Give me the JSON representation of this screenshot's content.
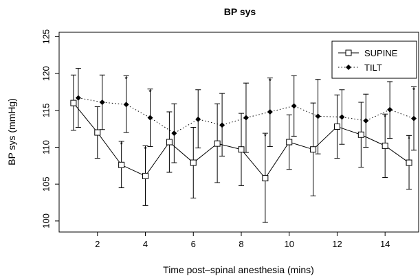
{
  "chart_data": {
    "type": "line",
    "title": "BP sys",
    "xlabel": "Time post–spinal anesthesia (mins)",
    "ylabel": "BP sys (mmHg)",
    "xlim": [
      0.4,
      15.4
    ],
    "ylim": [
      98.5,
      125.6
    ],
    "x_ticks": [
      "2",
      "4",
      "6",
      "8",
      "10",
      "12",
      "14"
    ],
    "y_ticks": [
      "100",
      "105",
      "110",
      "115",
      "120",
      "125"
    ],
    "legend_position": "top-right",
    "grid": false,
    "series": [
      {
        "name": "SUPINE",
        "line_style": "solid",
        "marker": "open-square",
        "color": "#000000",
        "points": [
          {
            "x": 1,
            "y": 116.0,
            "lo": 112.3,
            "hi": 119.8,
            "star": false
          },
          {
            "x": 2,
            "y": 112.0,
            "lo": 108.5,
            "hi": 115.5,
            "star": false
          },
          {
            "x": 3,
            "y": 107.6,
            "lo": 104.5,
            "hi": 110.8,
            "star": true
          },
          {
            "x": 4,
            "y": 106.1,
            "lo": 102.1,
            "hi": 110.2,
            "star": true
          },
          {
            "x": 5,
            "y": 110.7,
            "lo": 106.6,
            "hi": 114.8,
            "star": false
          },
          {
            "x": 6,
            "y": 107.9,
            "lo": 103.1,
            "hi": 112.7,
            "star": false
          },
          {
            "x": 7,
            "y": 110.5,
            "lo": 105.2,
            "hi": 115.9,
            "star": false
          },
          {
            "x": 8,
            "y": 109.7,
            "lo": 104.8,
            "hi": 114.6,
            "star": false
          },
          {
            "x": 9,
            "y": 105.8,
            "lo": 99.8,
            "hi": 111.9,
            "star": true
          },
          {
            "x": 10,
            "y": 110.7,
            "lo": 107.0,
            "hi": 114.4,
            "star": false
          },
          {
            "x": 11,
            "y": 109.7,
            "lo": 103.4,
            "hi": 116.0,
            "star": false
          },
          {
            "x": 12,
            "y": 112.8,
            "lo": 108.5,
            "hi": 117.1,
            "star": false
          },
          {
            "x": 13,
            "y": 111.7,
            "lo": 107.3,
            "hi": 116.1,
            "star": false
          },
          {
            "x": 14,
            "y": 110.2,
            "lo": 105.9,
            "hi": 114.5,
            "star": true
          },
          {
            "x": 15,
            "y": 107.9,
            "lo": 104.3,
            "hi": 111.6,
            "star": true
          }
        ]
      },
      {
        "name": "TILT",
        "line_style": "dotted",
        "marker": "filled-diamond",
        "color": "#000000",
        "points": [
          {
            "x": 1.2,
            "y": 116.7,
            "lo": 112.7,
            "hi": 120.7,
            "star": false
          },
          {
            "x": 2.2,
            "y": 116.1,
            "lo": 112.4,
            "hi": 119.8,
            "star": false
          },
          {
            "x": 3.2,
            "y": 115.8,
            "lo": 112.0,
            "hi": 119.7,
            "star": true
          },
          {
            "x": 4.2,
            "y": 114.0,
            "lo": 110.1,
            "hi": 117.9,
            "star": true
          },
          {
            "x": 5.2,
            "y": 111.9,
            "lo": 107.9,
            "hi": 115.9,
            "star": false
          },
          {
            "x": 6.2,
            "y": 113.8,
            "lo": 109.9,
            "hi": 117.8,
            "star": false
          },
          {
            "x": 7.2,
            "y": 113.0,
            "lo": 108.8,
            "hi": 117.3,
            "star": false
          },
          {
            "x": 8.2,
            "y": 114.0,
            "lo": 109.3,
            "hi": 118.7,
            "star": false
          },
          {
            "x": 9.2,
            "y": 114.8,
            "lo": 110.1,
            "hi": 119.4,
            "star": true
          },
          {
            "x": 10.2,
            "y": 115.6,
            "lo": 111.5,
            "hi": 119.7,
            "star": false
          },
          {
            "x": 11.2,
            "y": 114.2,
            "lo": 109.1,
            "hi": 119.2,
            "star": false
          },
          {
            "x": 12.2,
            "y": 114.1,
            "lo": 110.4,
            "hi": 117.8,
            "star": false
          },
          {
            "x": 13.2,
            "y": 113.6,
            "lo": 110.0,
            "hi": 117.2,
            "star": false
          },
          {
            "x": 14.2,
            "y": 115.1,
            "lo": 111.2,
            "hi": 118.9,
            "star": false
          },
          {
            "x": 15.2,
            "y": 113.9,
            "lo": 109.6,
            "hi": 118.2,
            "star": true
          }
        ]
      }
    ]
  }
}
